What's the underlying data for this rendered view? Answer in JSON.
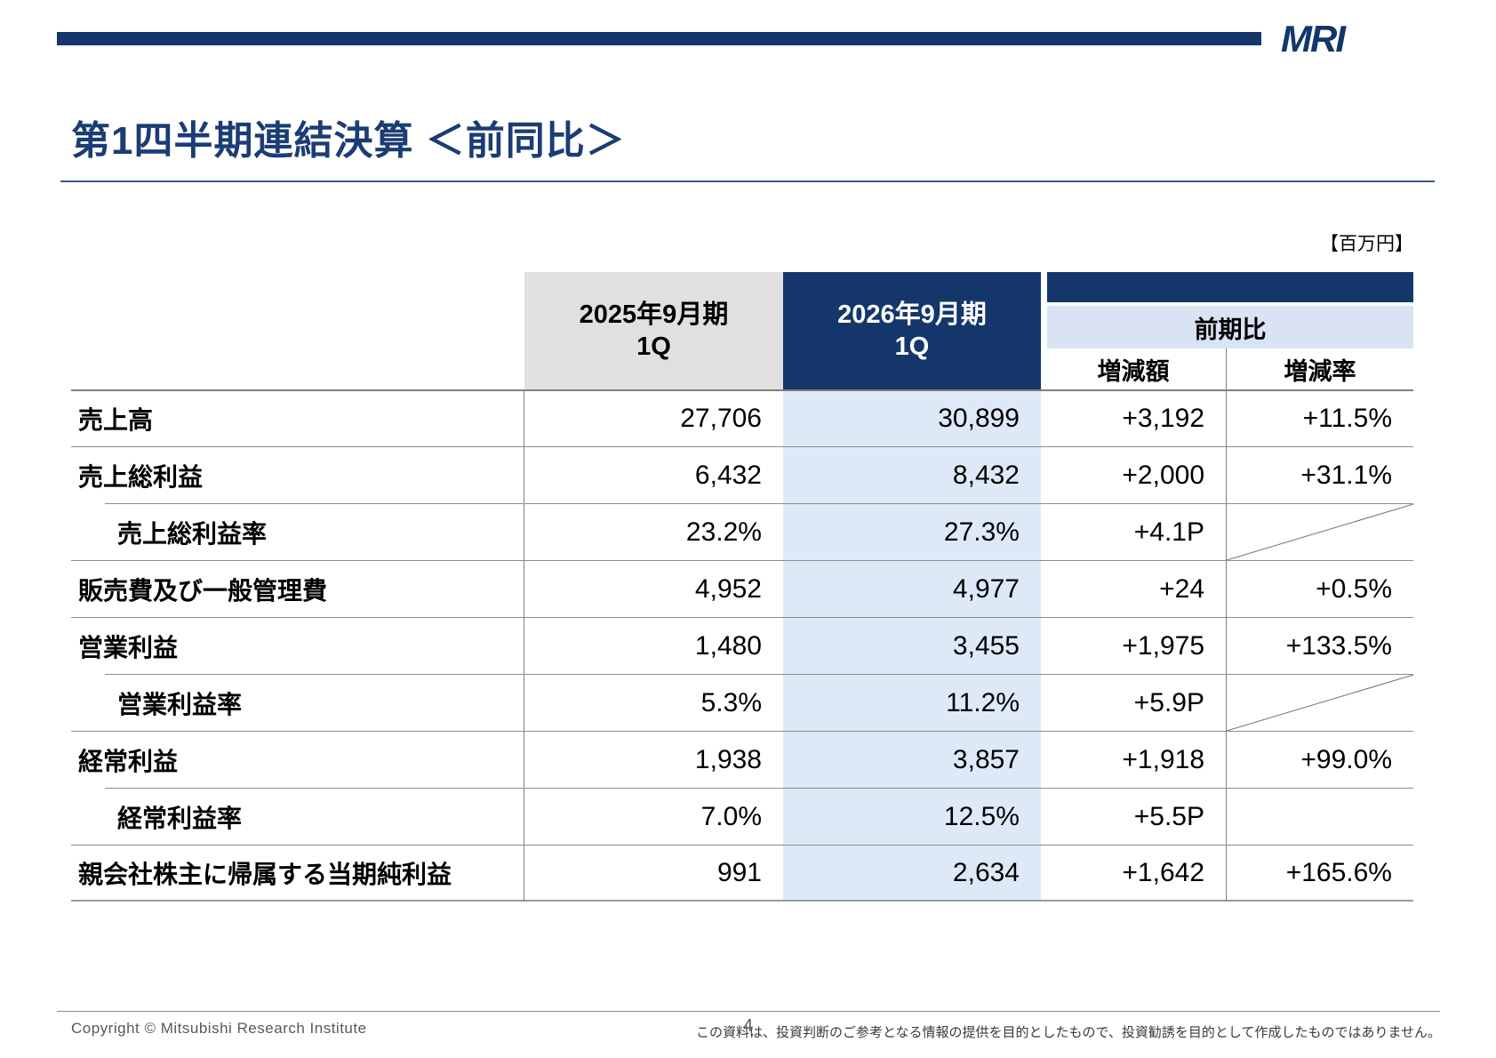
{
  "brand": {
    "logo_text": "MRI",
    "navy": "#14366B",
    "title_blue": "#1B3C74",
    "header_gray": "#E0E0E0",
    "comparison_band_blue": "#DAE3F3",
    "highlight_column_blue": "#DEE9F8"
  },
  "header": {
    "title": "第1四半期連結決算 ＜前同比＞"
  },
  "table": {
    "unit_label": "【百万円】",
    "columns": {
      "prev_line1": "2025年9月期",
      "prev_line2": "1Q",
      "curr_line1": "2026年9月期",
      "curr_line2": "1Q",
      "comparison": "前期比",
      "change_amount": "増減額",
      "change_rate": "増減率"
    },
    "rows": [
      {
        "label": "売上高",
        "indent": false,
        "prev": "27,706",
        "curr": "30,899",
        "amount": "+3,192",
        "rate": "+11.5%",
        "diagonal": false
      },
      {
        "label": "売上総利益",
        "indent": false,
        "prev": "6,432",
        "curr": "8,432",
        "amount": "+2,000",
        "rate": "+31.1%",
        "diagonal": false
      },
      {
        "label": "売上総利益率",
        "indent": true,
        "prev": "23.2%",
        "curr": "27.3%",
        "amount": "+4.1P",
        "rate": "",
        "diagonal": true
      },
      {
        "label": "販売費及び一般管理費",
        "indent": false,
        "prev": "4,952",
        "curr": "4,977",
        "amount": "+24",
        "rate": "+0.5%",
        "diagonal": false
      },
      {
        "label": "営業利益",
        "indent": false,
        "prev": "1,480",
        "curr": "3,455",
        "amount": "+1,975",
        "rate": "+133.5%",
        "diagonal": false
      },
      {
        "label": "営業利益率",
        "indent": true,
        "prev": "5.3%",
        "curr": "11.2%",
        "amount": "+5.9P",
        "rate": "",
        "diagonal": true
      },
      {
        "label": "経常利益",
        "indent": false,
        "prev": "1,938",
        "curr": "3,857",
        "amount": "+1,918",
        "rate": "+99.0%",
        "diagonal": false
      },
      {
        "label": "経常利益率",
        "indent": true,
        "prev": "7.0%",
        "curr": "12.5%",
        "amount": "+5.5P",
        "rate": "",
        "diagonal": false
      },
      {
        "label": "親会社株主に帰属する当期純利益",
        "indent": false,
        "prev": "991",
        "curr": "2,634",
        "amount": "+1,642",
        "rate": "+165.6%",
        "diagonal": false
      }
    ]
  },
  "footer": {
    "copyright": "Copyright © Mitsubishi Research Institute",
    "page_number": "4",
    "disclaimer": "この資料は、投資判断のご参考となる情報の提供を目的としたもので、投資勧誘を目的として作成したものではありません。"
  }
}
